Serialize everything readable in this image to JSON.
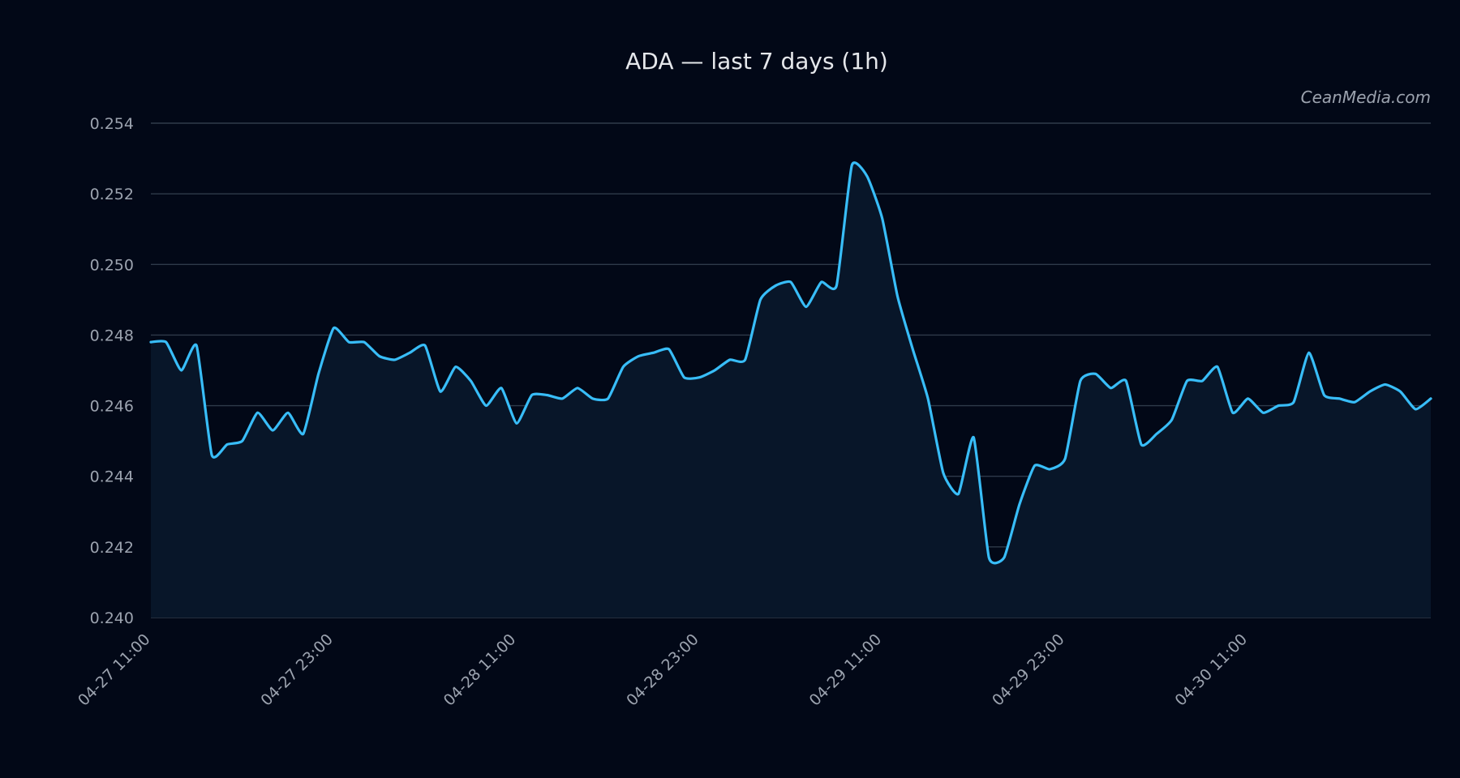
{
  "chart_data": {
    "type": "area",
    "title": "ADA — last 7 days (1h)",
    "watermark": "CeanMedia.com",
    "xlabel": "",
    "ylabel": "",
    "ylim": [
      0.24,
      0.254
    ],
    "y_ticks": [
      "0.240",
      "0.242",
      "0.244",
      "0.246",
      "0.248",
      "0.250",
      "0.252",
      "0.254"
    ],
    "x_ticks": [
      {
        "index": 0,
        "label": "04-27 11:00"
      },
      {
        "index": 12,
        "label": "04-27 23:00"
      },
      {
        "index": 24,
        "label": "04-28 11:00"
      },
      {
        "index": 36,
        "label": "04-28 23:00"
      },
      {
        "index": 48,
        "label": "04-29 11:00"
      },
      {
        "index": 60,
        "label": "04-29 23:00"
      },
      {
        "index": 72,
        "label": "04-30 11:00"
      }
    ],
    "x_start": "04-27 11:00",
    "x_interval": "1h",
    "grid": true,
    "line_color": "#38bdf8",
    "fill_color": "#081629",
    "background_color": "#020817",
    "series": [
      {
        "values": [
          0.2478,
          0.2478,
          0.247,
          0.2477,
          0.2446,
          0.2449,
          0.245,
          0.2458,
          0.2453,
          0.2458,
          0.2452,
          0.2469,
          0.2482,
          0.2478,
          0.2478,
          0.2474,
          0.2473,
          0.2475,
          0.2477,
          0.2464,
          0.2471,
          0.2467,
          0.246,
          0.2465,
          0.2455,
          0.2463,
          0.2463,
          0.2462,
          0.2465,
          0.2462,
          0.2462,
          0.2471,
          0.2474,
          0.2475,
          0.2476,
          0.2468,
          0.2468,
          0.247,
          0.2473,
          0.2473,
          0.249,
          0.2494,
          0.2495,
          0.2488,
          0.2495,
          0.2494,
          0.2528,
          0.2525,
          0.2513,
          0.2491,
          0.2476,
          0.2462,
          0.2441,
          0.2435,
          0.2451,
          0.2417,
          0.2417,
          0.2432,
          0.2443,
          0.2442,
          0.2445,
          0.2467,
          0.2469,
          0.2465,
          0.2467,
          0.2449,
          0.2452,
          0.2456,
          0.2467,
          0.2467,
          0.2471,
          0.2458,
          0.2462,
          0.2458,
          0.246,
          0.2461,
          0.2475,
          0.2463,
          0.2462,
          0.2461,
          0.2464,
          0.2466,
          0.2464,
          0.2459,
          0.2462
        ]
      }
    ]
  }
}
